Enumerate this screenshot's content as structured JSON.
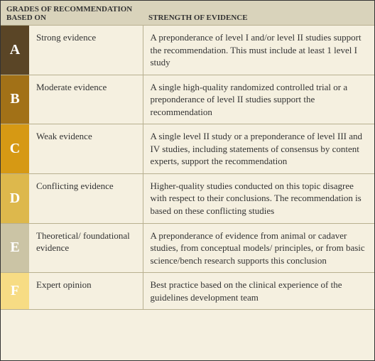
{
  "header": {
    "left": "GRADES OF RECOMMENDATION BASED ON",
    "right": "STRENGTH OF EVIDENCE"
  },
  "rows": [
    {
      "grade": "A",
      "color": "#5a4526",
      "label": "Strong evidence",
      "desc": "A preponderance of level I and/or level II studies support the recommendation. This must include at least 1 level I study"
    },
    {
      "grade": "B",
      "color": "#a27117",
      "label": "Moderate evidence",
      "desc": "A single high-quality randomized controlled trial or a preponderance of level II studies support the recommendation"
    },
    {
      "grade": "C",
      "color": "#d69914",
      "label": "Weak evidence",
      "desc": "A single level II study or a preponderance of level III and IV studies, including statements of consensus by content experts, support the recommendation"
    },
    {
      "grade": "D",
      "color": "#ddb84c",
      "label": "Conflicting evidence",
      "desc": "Higher-quality studies conducted on this topic disagree with respect to their conclusions. The recommendation is based on these conflicting studies"
    },
    {
      "grade": "E",
      "color": "#cbc4a5",
      "label": "Theoretical/ foundational evidence",
      "desc": "A preponderance of evidence from animal or cadaver studies, from conceptual models/ principles, or from basic science/bench research supports this conclusion"
    },
    {
      "grade": "F",
      "color": "#f7dc84",
      "label": "Expert opinion",
      "desc": "Best practice based on the clinical experience of the guidelines development team"
    }
  ]
}
